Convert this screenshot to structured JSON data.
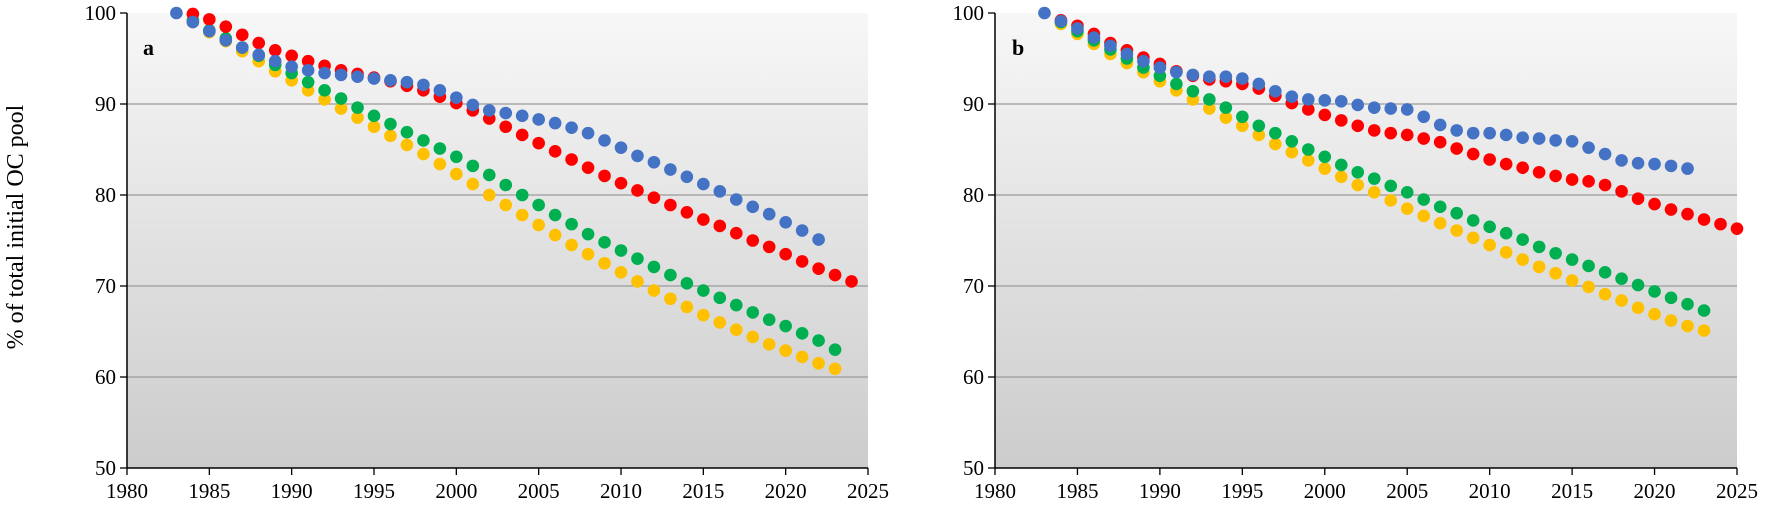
{
  "chart_data": [
    {
      "type": "scatter",
      "panel_label": "a",
      "ylabel": "% of total initial OC pool",
      "xlabel": "",
      "xlim": [
        1980,
        2025
      ],
      "ylim": [
        50,
        100
      ],
      "x_ticks": [
        1980,
        1985,
        1990,
        1995,
        2000,
        2005,
        2010,
        2015,
        2020,
        2025
      ],
      "y_ticks": [
        50,
        60,
        70,
        80,
        90,
        100
      ],
      "grid": "horizontal",
      "series": [
        {
          "name": "blue",
          "color": "#4472c4",
          "x_start": 1983,
          "values": [
            100,
            99.0,
            98.0,
            97.0,
            96.2,
            95.4,
            94.7,
            94.1,
            93.7,
            93.4,
            93.2,
            93.0,
            92.8,
            92.6,
            92.4,
            92.1,
            91.5,
            90.7,
            89.9,
            89.3,
            89.0,
            88.7,
            88.3,
            87.9,
            87.4,
            86.8,
            86.0,
            85.2,
            84.3,
            83.6,
            82.8,
            82.0,
            81.2,
            80.4,
            79.5,
            78.7,
            77.9,
            77.0,
            76.1,
            75.1
          ]
        },
        {
          "name": "red",
          "color": "#ff0000",
          "x_start": 1984,
          "values": [
            99.9,
            99.3,
            98.5,
            97.6,
            96.7,
            95.9,
            95.3,
            94.7,
            94.2,
            93.7,
            93.3,
            92.9,
            92.5,
            92.0,
            91.5,
            90.8,
            90.1,
            89.3,
            88.4,
            87.5,
            86.6,
            85.7,
            84.8,
            83.9,
            83.0,
            82.1,
            81.3,
            80.5,
            79.7,
            78.9,
            78.1,
            77.3,
            76.6,
            75.8,
            75.0,
            74.3,
            73.5,
            72.7,
            71.9,
            71.2,
            70.5
          ]
        },
        {
          "name": "green",
          "color": "#00b050",
          "x_start": 1984,
          "values": [
            99.2,
            98.1,
            97.2,
            96.2,
            95.3,
            94.3,
            93.4,
            92.4,
            91.5,
            90.6,
            89.6,
            88.7,
            87.8,
            86.9,
            86.0,
            85.1,
            84.2,
            83.2,
            82.2,
            81.1,
            80.0,
            78.9,
            77.8,
            76.8,
            75.7,
            74.8,
            73.9,
            73.0,
            72.1,
            71.2,
            70.3,
            69.5,
            68.7,
            67.9,
            67.1,
            66.3,
            65.6,
            64.8,
            64.0,
            63.0
          ]
        },
        {
          "name": "yellow",
          "color": "#ffc000",
          "x_start": 1984,
          "values": [
            99.0,
            97.9,
            96.9,
            95.8,
            94.7,
            93.6,
            92.6,
            91.5,
            90.5,
            89.5,
            88.5,
            87.5,
            86.5,
            85.5,
            84.5,
            83.4,
            82.3,
            81.2,
            80.0,
            78.9,
            77.8,
            76.7,
            75.6,
            74.5,
            73.5,
            72.5,
            71.5,
            70.5,
            69.5,
            68.6,
            67.7,
            66.8,
            66.0,
            65.2,
            64.4,
            63.6,
            62.9,
            62.2,
            61.5,
            60.9
          ]
        }
      ]
    },
    {
      "type": "scatter",
      "panel_label": "b",
      "ylabel": "",
      "xlabel": "",
      "xlim": [
        1980,
        2025
      ],
      "ylim": [
        50,
        100
      ],
      "x_ticks": [
        1980,
        1985,
        1990,
        1995,
        2000,
        2005,
        2010,
        2015,
        2020,
        2025
      ],
      "y_ticks": [
        50,
        60,
        70,
        80,
        90,
        100
      ],
      "grid": "horizontal",
      "series": [
        {
          "name": "blue",
          "color": "#4472c4",
          "x_start": 1983,
          "values": [
            100,
            99.1,
            98.3,
            97.3,
            96.4,
            95.5,
            94.7,
            94.0,
            93.5,
            93.2,
            93.0,
            93.0,
            92.8,
            92.2,
            91.4,
            90.8,
            90.5,
            90.4,
            90.3,
            89.9,
            89.6,
            89.5,
            89.4,
            88.6,
            87.7,
            87.1,
            86.8,
            86.8,
            86.6,
            86.3,
            86.2,
            86.0,
            85.9,
            85.2,
            84.5,
            83.8,
            83.5,
            83.4,
            83.2,
            82.9
          ]
        },
        {
          "name": "red",
          "color": "#ff0000",
          "x_start": 1984,
          "values": [
            99.2,
            98.6,
            97.7,
            96.7,
            95.9,
            95.1,
            94.4,
            93.6,
            93.1,
            92.7,
            92.5,
            92.2,
            91.7,
            90.9,
            90.1,
            89.4,
            88.8,
            88.2,
            87.6,
            87.1,
            86.8,
            86.6,
            86.2,
            85.8,
            85.1,
            84.5,
            83.9,
            83.4,
            83.0,
            82.5,
            82.1,
            81.7,
            81.5,
            81.1,
            80.4,
            79.6,
            79.0,
            78.4,
            77.9,
            77.3,
            76.8,
            76.3
          ]
        },
        {
          "name": "green",
          "color": "#00b050",
          "x_start": 1984,
          "values": [
            99.0,
            98.0,
            97.0,
            96.0,
            95.0,
            94.0,
            93.1,
            92.2,
            91.4,
            90.5,
            89.6,
            88.6,
            87.6,
            86.8,
            85.9,
            85.0,
            84.2,
            83.3,
            82.5,
            81.8,
            81.0,
            80.3,
            79.5,
            78.7,
            78.0,
            77.2,
            76.5,
            75.8,
            75.1,
            74.3,
            73.6,
            72.9,
            72.2,
            71.5,
            70.8,
            70.1,
            69.4,
            68.7,
            68.0,
            67.3
          ]
        },
        {
          "name": "yellow",
          "color": "#ffc000",
          "x_start": 1984,
          "values": [
            98.8,
            97.7,
            96.6,
            95.5,
            94.5,
            93.5,
            92.5,
            91.5,
            90.5,
            89.5,
            88.5,
            87.6,
            86.6,
            85.6,
            84.7,
            83.8,
            82.9,
            82.0,
            81.1,
            80.3,
            79.4,
            78.5,
            77.7,
            76.9,
            76.1,
            75.3,
            74.5,
            73.7,
            72.9,
            72.1,
            71.4,
            70.6,
            69.9,
            69.1,
            68.4,
            67.6,
            66.9,
            66.2,
            65.6,
            65.1
          ]
        }
      ]
    }
  ]
}
